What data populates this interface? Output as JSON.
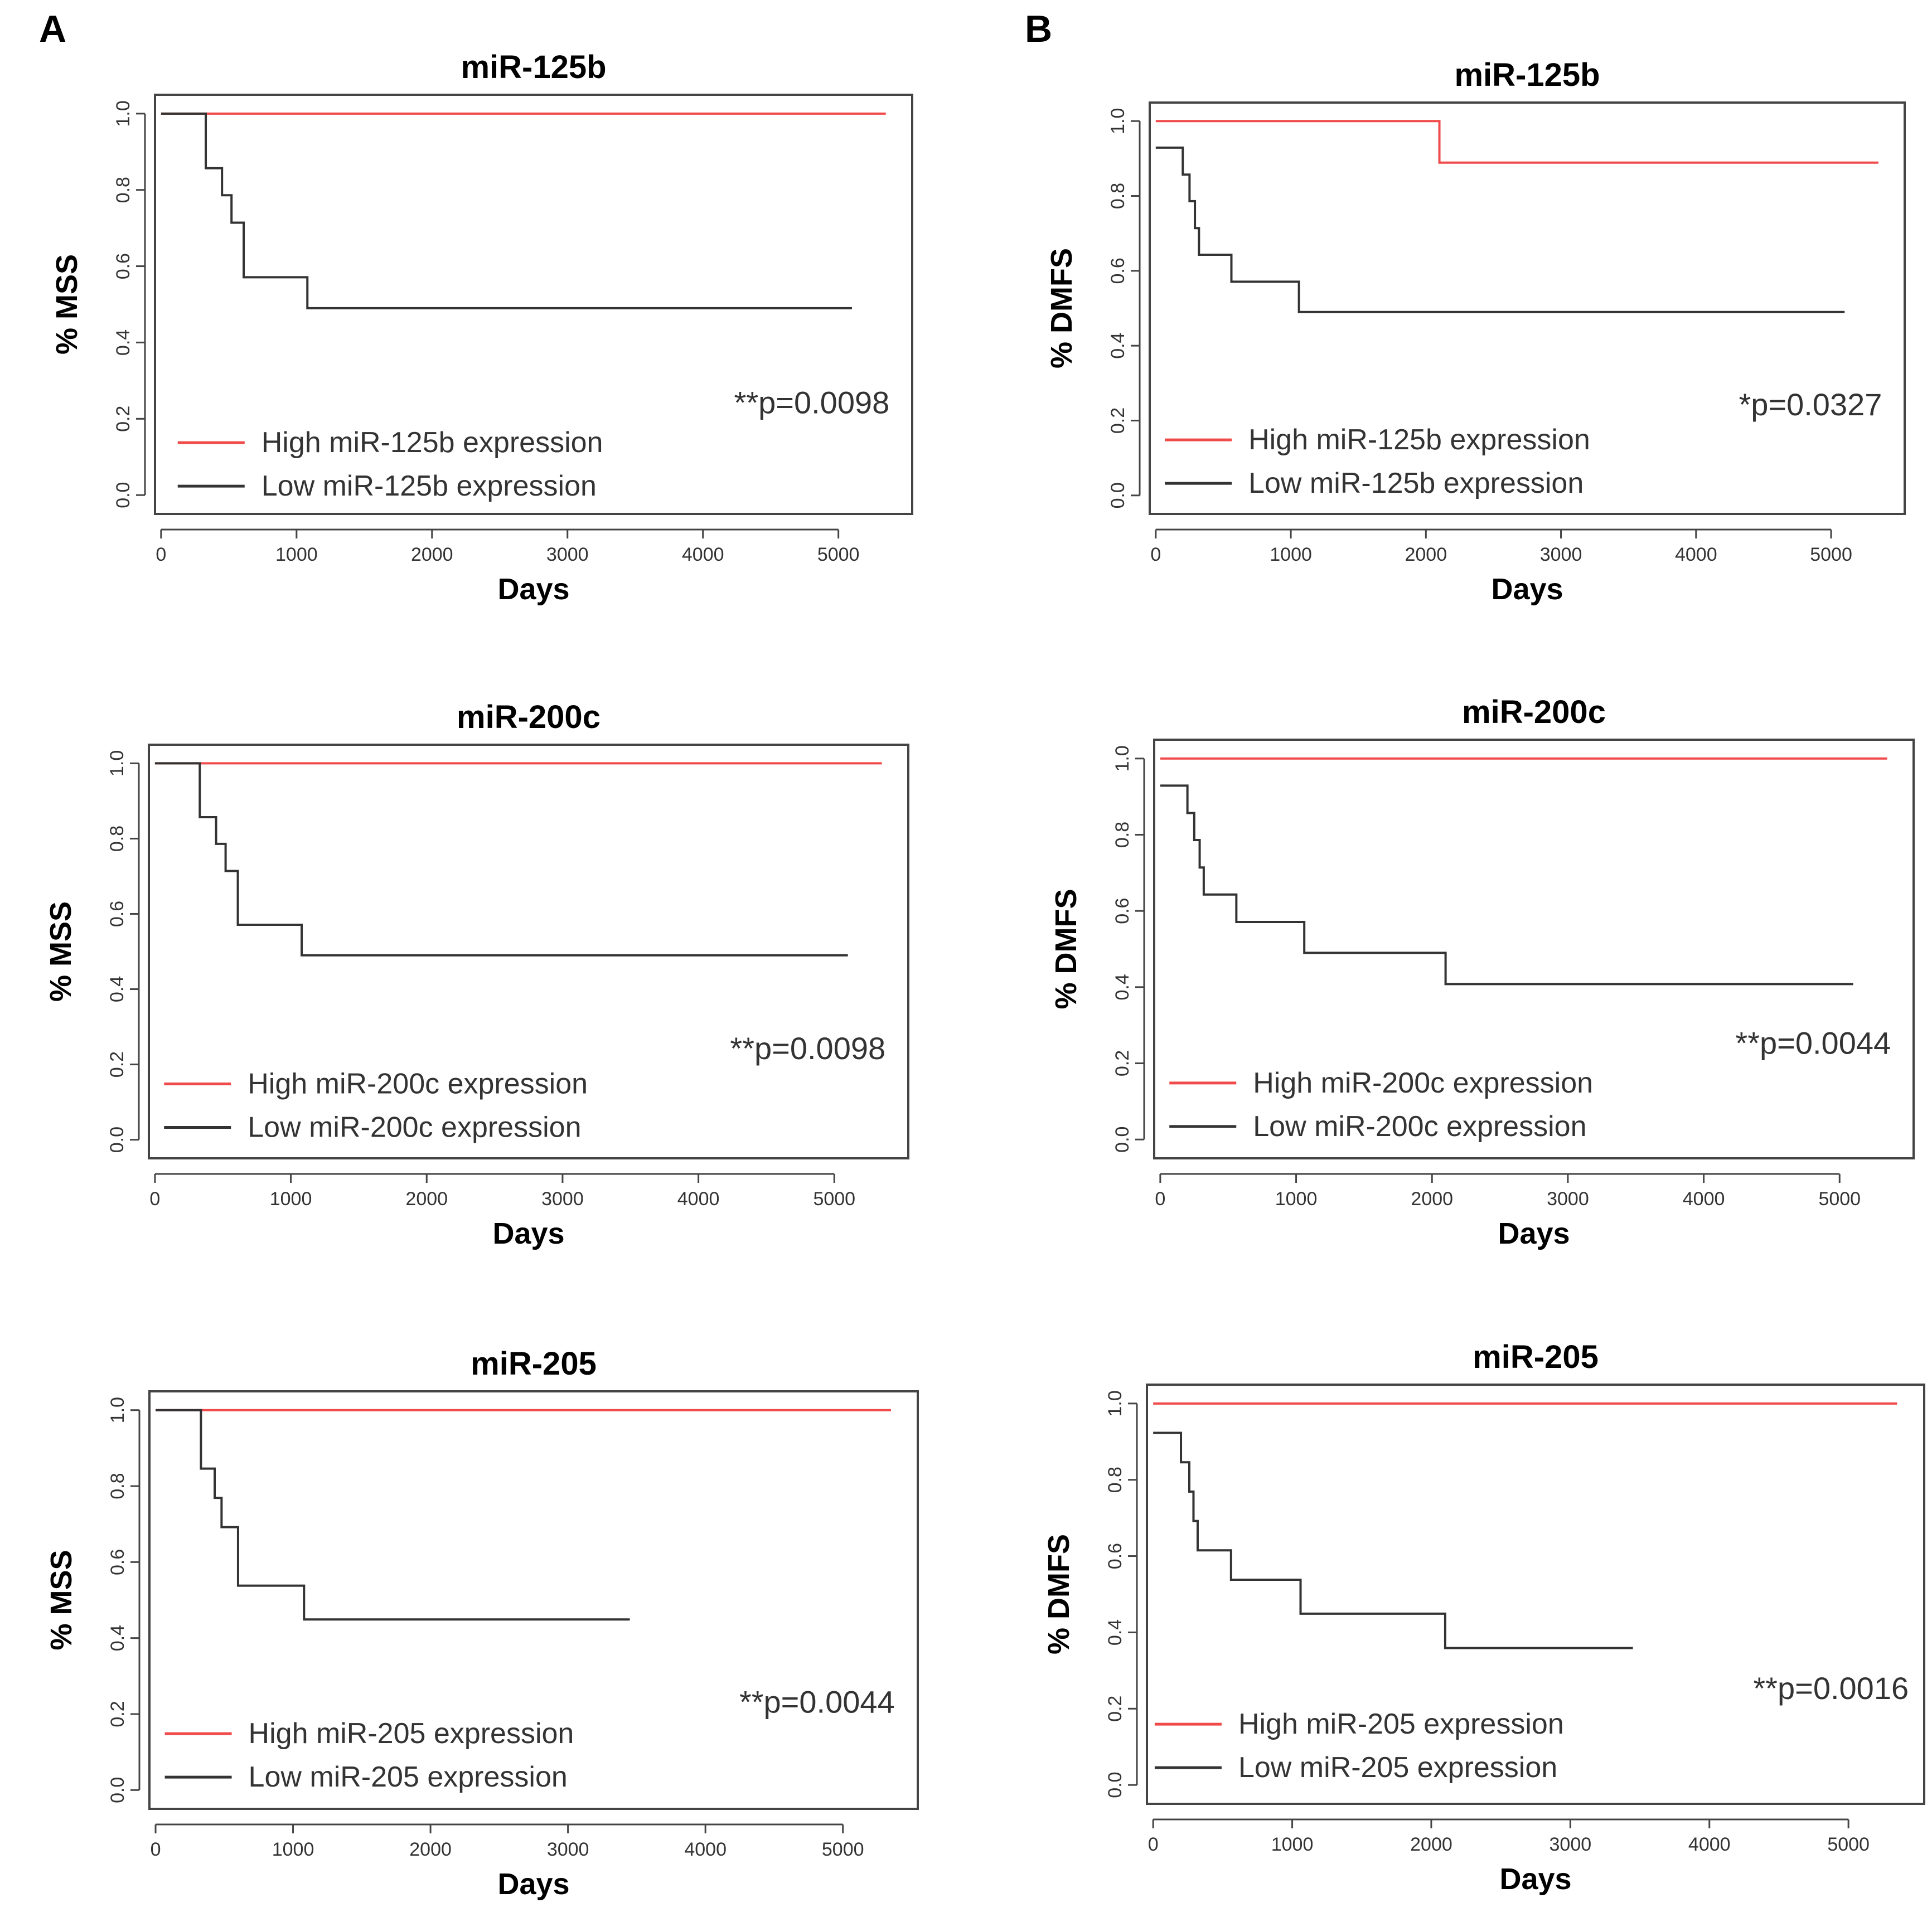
{
  "panel_labels": [
    "A",
    "B"
  ],
  "colors": {
    "high": "#f04a4a",
    "low": "#333333",
    "frame": "#444444"
  },
  "chart_data": [
    {
      "type": "line",
      "panel": "A",
      "title": "miR-125b",
      "xlabel": "Days",
      "ylabel": "% MSS",
      "xlim": [
        0,
        5500
      ],
      "ylim": [
        0,
        1.0
      ],
      "xticks": [
        0,
        1000,
        2000,
        3000,
        4000,
        5000
      ],
      "yticks": [
        "0.0",
        "0.2",
        "0.4",
        "0.6",
        "0.8",
        "1.0"
      ],
      "pvalue": "**p=0.0098",
      "series": [
        {
          "name": "High miR-125b expression",
          "color": "#f04a4a",
          "x": [
            0,
            5350
          ],
          "y": [
            1.0,
            1.0
          ]
        },
        {
          "name": "Low miR-125b expression",
          "color": "#333333",
          "x": [
            0,
            330,
            450,
            520,
            610,
            1080,
            5100
          ],
          "y": [
            1.0,
            0.857,
            0.786,
            0.714,
            0.571,
            0.49,
            0.49
          ]
        }
      ]
    },
    {
      "type": "line",
      "panel": "B",
      "title": "miR-125b",
      "xlabel": "Days",
      "ylabel": "% DMFS",
      "xlim": [
        0,
        5500
      ],
      "ylim": [
        0,
        1.0
      ],
      "xticks": [
        0,
        1000,
        2000,
        3000,
        4000,
        5000
      ],
      "yticks": [
        "0.0",
        "0.2",
        "0.4",
        "0.6",
        "0.8",
        "1.0"
      ],
      "pvalue": "*p=0.0327",
      "series": [
        {
          "name": "High miR-125b expression",
          "color": "#f04a4a",
          "x": [
            0,
            2100,
            5350
          ],
          "y": [
            1.0,
            0.889,
            0.889
          ]
        },
        {
          "name": "Low miR-125b expression",
          "color": "#333333",
          "x": [
            0,
            200,
            250,
            290,
            320,
            560,
            1060,
            5100
          ],
          "y": [
            0.929,
            0.857,
            0.786,
            0.714,
            0.643,
            0.571,
            0.49,
            0.49
          ]
        }
      ]
    },
    {
      "type": "line",
      "panel": "A",
      "title": "miR-200c",
      "xlabel": "Days",
      "ylabel": "% MSS",
      "xlim": [
        0,
        5500
      ],
      "ylim": [
        0,
        1.0
      ],
      "xticks": [
        0,
        1000,
        2000,
        3000,
        4000,
        5000
      ],
      "yticks": [
        "0.0",
        "0.2",
        "0.4",
        "0.6",
        "0.8",
        "1.0"
      ],
      "pvalue": "**p=0.0098",
      "series": [
        {
          "name": "High miR-200c expression",
          "color": "#f04a4a",
          "x": [
            0,
            5350
          ],
          "y": [
            1.0,
            1.0
          ]
        },
        {
          "name": "Low miR-200c expression",
          "color": "#333333",
          "x": [
            0,
            330,
            450,
            520,
            610,
            1080,
            5100
          ],
          "y": [
            1.0,
            0.857,
            0.786,
            0.714,
            0.571,
            0.49,
            0.49
          ]
        }
      ]
    },
    {
      "type": "line",
      "panel": "B",
      "title": "miR-200c",
      "xlabel": "Days",
      "ylabel": "% DMFS",
      "xlim": [
        0,
        5500
      ],
      "ylim": [
        0,
        1.0
      ],
      "xticks": [
        0,
        1000,
        2000,
        3000,
        4000,
        5000
      ],
      "yticks": [
        "0.0",
        "0.2",
        "0.4",
        "0.6",
        "0.8",
        "1.0"
      ],
      "pvalue": "**p=0.0044",
      "series": [
        {
          "name": "High miR-200c expression",
          "color": "#f04a4a",
          "x": [
            0,
            5350
          ],
          "y": [
            1.0,
            1.0
          ]
        },
        {
          "name": "Low miR-200c expression",
          "color": "#333333",
          "x": [
            0,
            200,
            250,
            290,
            320,
            560,
            1060,
            2100,
            5100
          ],
          "y": [
            0.929,
            0.857,
            0.786,
            0.714,
            0.643,
            0.571,
            0.49,
            0.408,
            0.408
          ]
        }
      ]
    },
    {
      "type": "line",
      "panel": "A",
      "title": "miR-205",
      "xlabel": "Days",
      "ylabel": "% MSS",
      "xlim": [
        0,
        5500
      ],
      "ylim": [
        0,
        1.0
      ],
      "xticks": [
        0,
        1000,
        2000,
        3000,
        4000,
        5000
      ],
      "yticks": [
        "0.0",
        "0.2",
        "0.4",
        "0.6",
        "0.8",
        "1.0"
      ],
      "pvalue": "**p=0.0044",
      "series": [
        {
          "name": "High miR-205 expression",
          "color": "#f04a4a",
          "x": [
            0,
            5350
          ],
          "y": [
            1.0,
            1.0
          ]
        },
        {
          "name": "Low miR-205 expression",
          "color": "#333333",
          "x": [
            0,
            330,
            430,
            480,
            600,
            1080,
            3450
          ],
          "y": [
            1.0,
            0.846,
            0.769,
            0.692,
            0.538,
            0.449,
            0.449
          ]
        }
      ]
    },
    {
      "type": "line",
      "panel": "B",
      "title": "miR-205",
      "xlabel": "Days",
      "ylabel": "% DMFS",
      "xlim": [
        0,
        5500
      ],
      "ylim": [
        0,
        1.0
      ],
      "xticks": [
        0,
        1000,
        2000,
        3000,
        4000,
        5000
      ],
      "yticks": [
        "0.0",
        "0.2",
        "0.4",
        "0.6",
        "0.8",
        "1.0"
      ],
      "pvalue": "**p=0.0016",
      "series": [
        {
          "name": "High miR-205 expression",
          "color": "#f04a4a",
          "x": [
            0,
            5350
          ],
          "y": [
            1.0,
            1.0
          ]
        },
        {
          "name": "Low miR-205 expression",
          "color": "#333333",
          "x": [
            0,
            200,
            260,
            290,
            320,
            560,
            1060,
            2100,
            3450
          ],
          "y": [
            0.923,
            0.846,
            0.769,
            0.692,
            0.615,
            0.538,
            0.449,
            0.359,
            0.359
          ]
        }
      ]
    }
  ]
}
